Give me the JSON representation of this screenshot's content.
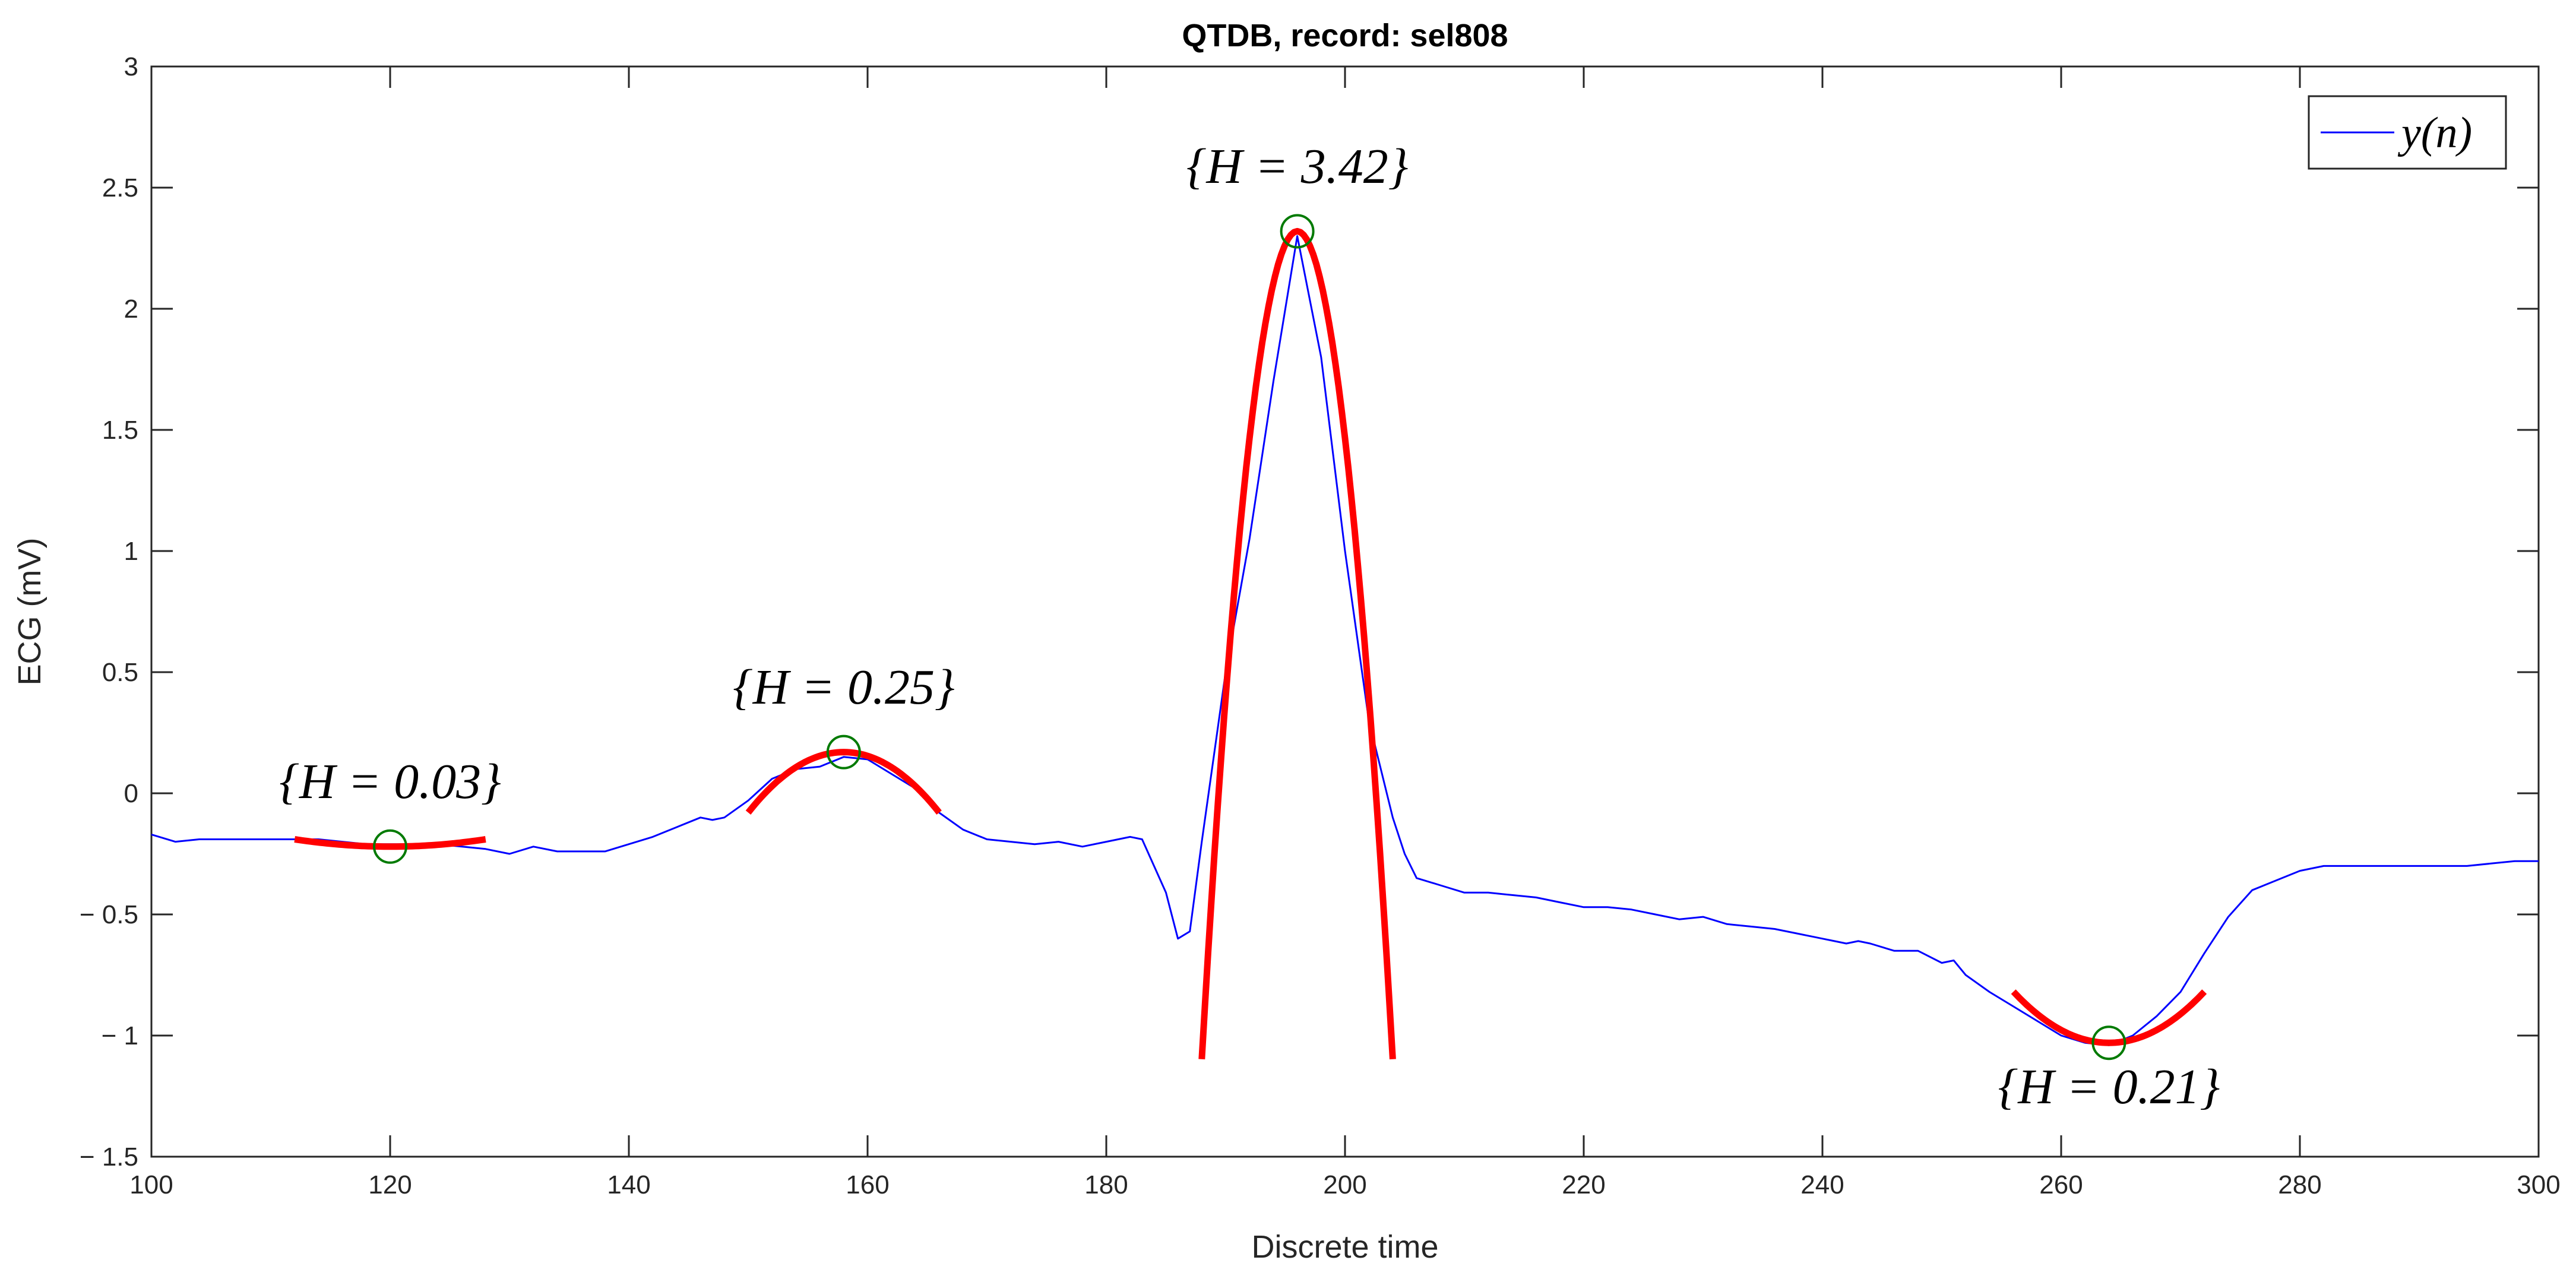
{
  "chart_data": {
    "type": "line",
    "title": "QTDB, record: sel808",
    "xlabel": "Discrete time",
    "ylabel": "ECG (mV)",
    "xlim": [
      100,
      300
    ],
    "ylim": [
      -1.5,
      3
    ],
    "xticks": [
      100,
      120,
      140,
      160,
      180,
      200,
      220,
      240,
      260,
      280,
      300
    ],
    "yticks": [
      -1.5,
      -1,
      -0.5,
      0,
      0.5,
      1,
      1.5,
      2,
      2.5,
      3
    ],
    "xtick_labels": [
      "100",
      "120",
      "140",
      "160",
      "180",
      "200",
      "220",
      "240",
      "260",
      "280",
      "300"
    ],
    "ytick_labels": [
      "− 1.5",
      "− 1",
      "− 0.5",
      "0",
      "0.5",
      "1",
      "1.5",
      "2",
      "2.5",
      "3"
    ],
    "legend": {
      "label": "y(n)",
      "placement": "top-right"
    },
    "colors": {
      "signal": "#0000ff",
      "fit": "#ff0000",
      "marker": "#007a00",
      "axes": "#262626"
    },
    "series": [
      {
        "name": "y(n)",
        "x": [
          100,
          102,
          104,
          106,
          108,
          110,
          112,
          114,
          116,
          118,
          120,
          122,
          124,
          126,
          128,
          130,
          132,
          134,
          136,
          138,
          140,
          142,
          144,
          146,
          147,
          148,
          150,
          152,
          154,
          156,
          158,
          160,
          162,
          164,
          166,
          168,
          170,
          172,
          174,
          176,
          178,
          180,
          181,
          182,
          183,
          184,
          185,
          186,
          187,
          188,
          190,
          192,
          194,
          196,
          198,
          200,
          202,
          204,
          205,
          206,
          208,
          210,
          212,
          214,
          216,
          218,
          220,
          222,
          224,
          226,
          228,
          230,
          232,
          234,
          236,
          238,
          240,
          241,
          242,
          243,
          244,
          246,
          248,
          250,
          251,
          252,
          254,
          256,
          258,
          260,
          262,
          264,
          266,
          268,
          270,
          272,
          274,
          276,
          278,
          280,
          282,
          284,
          286,
          288,
          290,
          292,
          294,
          296,
          298,
          300
        ],
        "y": [
          -0.17,
          -0.2,
          -0.19,
          -0.19,
          -0.19,
          -0.19,
          -0.19,
          -0.19,
          -0.2,
          -0.21,
          -0.21,
          -0.21,
          -0.21,
          -0.22,
          -0.23,
          -0.25,
          -0.22,
          -0.24,
          -0.24,
          -0.24,
          -0.21,
          -0.18,
          -0.14,
          -0.1,
          -0.11,
          -0.1,
          -0.03,
          0.06,
          0.1,
          0.11,
          0.15,
          0.14,
          0.08,
          0.02,
          -0.08,
          -0.15,
          -0.19,
          -0.2,
          -0.21,
          -0.2,
          -0.22,
          -0.2,
          -0.19,
          -0.18,
          -0.19,
          -0.3,
          -0.41,
          -0.6,
          -0.57,
          -0.2,
          0.5,
          1.05,
          1.7,
          2.3,
          1.8,
          1.0,
          0.3,
          -0.1,
          -0.25,
          -0.35,
          -0.38,
          -0.41,
          -0.41,
          -0.42,
          -0.43,
          -0.45,
          -0.47,
          -0.47,
          -0.48,
          -0.5,
          -0.52,
          -0.51,
          -0.54,
          -0.55,
          -0.56,
          -0.58,
          -0.6,
          -0.61,
          -0.62,
          -0.61,
          -0.62,
          -0.65,
          -0.65,
          -0.7,
          -0.69,
          -0.75,
          -0.82,
          -0.88,
          -0.94,
          -1.0,
          -1.03,
          -1.04,
          -1.0,
          -0.92,
          -0.82,
          -0.66,
          -0.51,
          -0.4,
          -0.36,
          -0.32,
          -0.3,
          -0.3,
          -0.3,
          -0.3,
          -0.3,
          -0.3,
          -0.3,
          -0.29,
          -0.28,
          -0.28
        ]
      }
    ],
    "fits": [
      {
        "name": "fit-baseline",
        "x_range": [
          112,
          128
        ],
        "vertex_x": 120,
        "vertex_y": -0.22,
        "curvature": 0.00047
      },
      {
        "name": "fit-p-wave",
        "x_range": [
          150,
          166
        ],
        "vertex_x": 158,
        "vertex_y": 0.17,
        "curvature": -0.0039
      },
      {
        "name": "fit-r-peak",
        "x_range": [
          188,
          204
        ],
        "vertex_x": 196,
        "vertex_y": 2.32,
        "curvature": -0.0534
      },
      {
        "name": "fit-t-wave",
        "x_range": [
          256,
          272
        ],
        "vertex_x": 264,
        "vertex_y": -1.03,
        "curvature": 0.0033
      }
    ],
    "markers": [
      {
        "x": 120,
        "y": -0.22
      },
      {
        "x": 158,
        "y": 0.17
      },
      {
        "x": 196,
        "y": 2.32
      },
      {
        "x": 264,
        "y": -1.03
      }
    ],
    "annotations": [
      {
        "text": "{H = 0.03}",
        "x": 120,
        "y": -0.02
      },
      {
        "text": "{H = 0.25}",
        "x": 158,
        "y": 0.37
      },
      {
        "text": "{H = 3.42}",
        "x": 196,
        "y": 2.52
      },
      {
        "text": "{H = 0.21}",
        "x": 264,
        "y": -1.28
      }
    ]
  }
}
